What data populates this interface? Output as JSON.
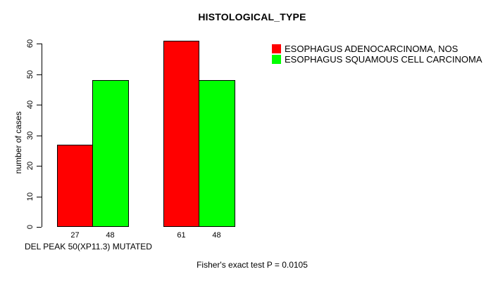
{
  "chart_data": {
    "type": "bar",
    "title": "HISTOLOGICAL_TYPE",
    "ylabel": "number of cases",
    "xlabel": "DEL PEAK 50(XP11.3) MUTATED",
    "annotation": "Fisher's exact test P = 0.0105",
    "ylim": [
      0,
      60
    ],
    "yticks": [
      0,
      10,
      20,
      30,
      40,
      50,
      60
    ],
    "grid": false,
    "legend_position": "top-right",
    "bar_border_color": "#000000",
    "series": [
      {
        "name": "ESOPHAGUS ADENOCARCINOMA, NOS",
        "color": "#FF0000",
        "values": [
          27,
          61
        ]
      },
      {
        "name": "ESOPHAGUS SQUAMOUS CELL CARCINOMA",
        "color": "#00FF00",
        "values": [
          48,
          48
        ]
      }
    ],
    "bar_value_labels": [
      "27",
      "48",
      "61",
      "48"
    ]
  }
}
